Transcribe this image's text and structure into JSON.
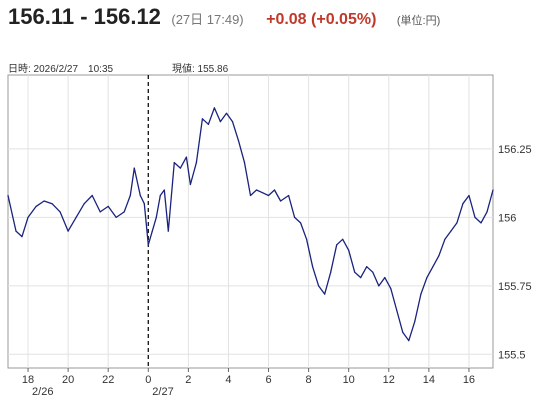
{
  "header": {
    "price": "156.11 - 156.12",
    "timestamp": "(27日 17:49)",
    "change": "+0.08 (+0.05%)",
    "unit": "(単位:円)",
    "change_color": "#c0392b"
  },
  "crosshair": {
    "date_label": "日時: 2026/2/27　10:35",
    "value_label": "現値: 155.86"
  },
  "chart_data": {
    "type": "line",
    "title": "",
    "xlabel": "",
    "ylabel": "",
    "ylim": [
      155.45,
      156.52
    ],
    "yticks": [
      155.5,
      155.75,
      156,
      156.25
    ],
    "ytick_labels": [
      "155.5",
      "155.75",
      "156",
      "156.25"
    ],
    "xlim": [
      17.0,
      41.2
    ],
    "xticks": [
      18,
      20,
      22,
      24,
      26,
      28,
      30,
      32,
      34,
      36,
      38,
      40
    ],
    "xtick_labels": [
      "18",
      "20",
      "22",
      "0",
      "2",
      "4",
      "6",
      "8",
      "10",
      "12",
      "14",
      "16"
    ],
    "date_labels": [
      {
        "x": 18,
        "label": "2/26"
      },
      {
        "x": 24,
        "label": "2/27"
      }
    ],
    "day_boundary_x": 24,
    "grid": true,
    "line_color": "#1a237e",
    "series": [
      {
        "values": [
          [
            17.0,
            156.08
          ],
          [
            17.4,
            155.95
          ],
          [
            17.7,
            155.93
          ],
          [
            18.0,
            156.0
          ],
          [
            18.4,
            156.04
          ],
          [
            18.8,
            156.06
          ],
          [
            19.2,
            156.05
          ],
          [
            19.6,
            156.02
          ],
          [
            20.0,
            155.95
          ],
          [
            20.4,
            156.0
          ],
          [
            20.8,
            156.05
          ],
          [
            21.2,
            156.08
          ],
          [
            21.6,
            156.02
          ],
          [
            22.0,
            156.04
          ],
          [
            22.4,
            156.0
          ],
          [
            22.8,
            156.02
          ],
          [
            23.1,
            156.08
          ],
          [
            23.3,
            156.18
          ],
          [
            23.6,
            156.08
          ],
          [
            23.8,
            156.05
          ],
          [
            24.0,
            155.9
          ],
          [
            24.2,
            155.95
          ],
          [
            24.4,
            156.0
          ],
          [
            24.6,
            156.08
          ],
          [
            24.8,
            156.1
          ],
          [
            25.0,
            155.95
          ],
          [
            25.3,
            156.2
          ],
          [
            25.6,
            156.18
          ],
          [
            25.9,
            156.22
          ],
          [
            26.1,
            156.12
          ],
          [
            26.4,
            156.2
          ],
          [
            26.7,
            156.36
          ],
          [
            27.0,
            156.34
          ],
          [
            27.3,
            156.4
          ],
          [
            27.6,
            156.35
          ],
          [
            27.9,
            156.38
          ],
          [
            28.2,
            156.35
          ],
          [
            28.5,
            156.28
          ],
          [
            28.8,
            156.2
          ],
          [
            29.1,
            156.08
          ],
          [
            29.4,
            156.1
          ],
          [
            29.7,
            156.09
          ],
          [
            30.0,
            156.08
          ],
          [
            30.3,
            156.1
          ],
          [
            30.6,
            156.06
          ],
          [
            31.0,
            156.08
          ],
          [
            31.3,
            156.0
          ],
          [
            31.6,
            155.98
          ],
          [
            31.9,
            155.92
          ],
          [
            32.2,
            155.82
          ],
          [
            32.5,
            155.75
          ],
          [
            32.8,
            155.72
          ],
          [
            33.1,
            155.8
          ],
          [
            33.4,
            155.9
          ],
          [
            33.7,
            155.92
          ],
          [
            34.0,
            155.88
          ],
          [
            34.3,
            155.8
          ],
          [
            34.6,
            155.78
          ],
          [
            34.9,
            155.82
          ],
          [
            35.2,
            155.8
          ],
          [
            35.5,
            155.75
          ],
          [
            35.8,
            155.78
          ],
          [
            36.1,
            155.74
          ],
          [
            36.4,
            155.66
          ],
          [
            36.7,
            155.58
          ],
          [
            37.0,
            155.55
          ],
          [
            37.3,
            155.62
          ],
          [
            37.6,
            155.72
          ],
          [
            37.9,
            155.78
          ],
          [
            38.2,
            155.82
          ],
          [
            38.5,
            155.86
          ],
          [
            38.8,
            155.92
          ],
          [
            39.1,
            155.95
          ],
          [
            39.4,
            155.98
          ],
          [
            39.7,
            156.05
          ],
          [
            40.0,
            156.08
          ],
          [
            40.3,
            156.0
          ],
          [
            40.6,
            155.98
          ],
          [
            40.9,
            156.02
          ],
          [
            41.2,
            156.1
          ]
        ]
      }
    ]
  }
}
